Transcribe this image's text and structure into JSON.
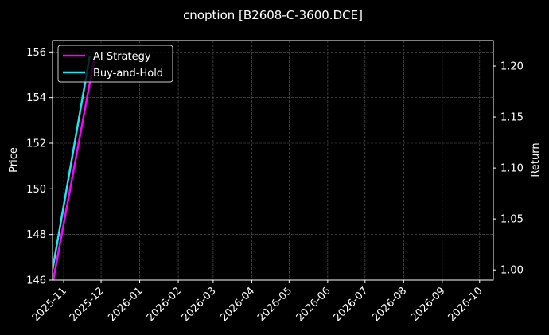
{
  "chart_data": {
    "type": "line",
    "title": "cnoption [B2608-C-3600.DCE]",
    "ylabel_left": "Price",
    "ylabel_right": "Return",
    "xlabel": "",
    "x_range": [
      "2025-10-23",
      "2026-10-12"
    ],
    "x_ticks": [
      "2025-11",
      "2025-12",
      "2026-01",
      "2026-02",
      "2026-03",
      "2026-04",
      "2026-05",
      "2026-06",
      "2026-07",
      "2026-08",
      "2026-09",
      "2026-10"
    ],
    "x_tick_dates": [
      "2025-11-01",
      "2025-12-01",
      "2026-01-01",
      "2026-02-01",
      "2026-03-01",
      "2026-04-01",
      "2026-05-01",
      "2026-06-01",
      "2026-07-01",
      "2026-08-01",
      "2026-09-01",
      "2026-10-01"
    ],
    "ylim_left": [
      146,
      156.5
    ],
    "yticks_left": [
      146,
      148,
      150,
      152,
      154,
      156
    ],
    "ylim_right": [
      0.99,
      1.225
    ],
    "yticks_right": [
      "1.00",
      "1.05",
      "1.10",
      "1.15",
      "1.20"
    ],
    "grid": true,
    "legend_position": "top-left",
    "series": [
      {
        "name": "AI Strategy",
        "color": "#ff00ff",
        "axis": "right",
        "x": [
          "2025-10-23",
          "2025-11-26"
        ],
        "y": [
          0.986,
          1.21
        ]
      },
      {
        "name": "Buy-and-Hold",
        "color": "#1fe5f0",
        "axis": "right",
        "x": [
          "2025-10-23",
          "2025-11-22"
        ],
        "y": [
          1.0,
          1.21
        ]
      }
    ]
  }
}
